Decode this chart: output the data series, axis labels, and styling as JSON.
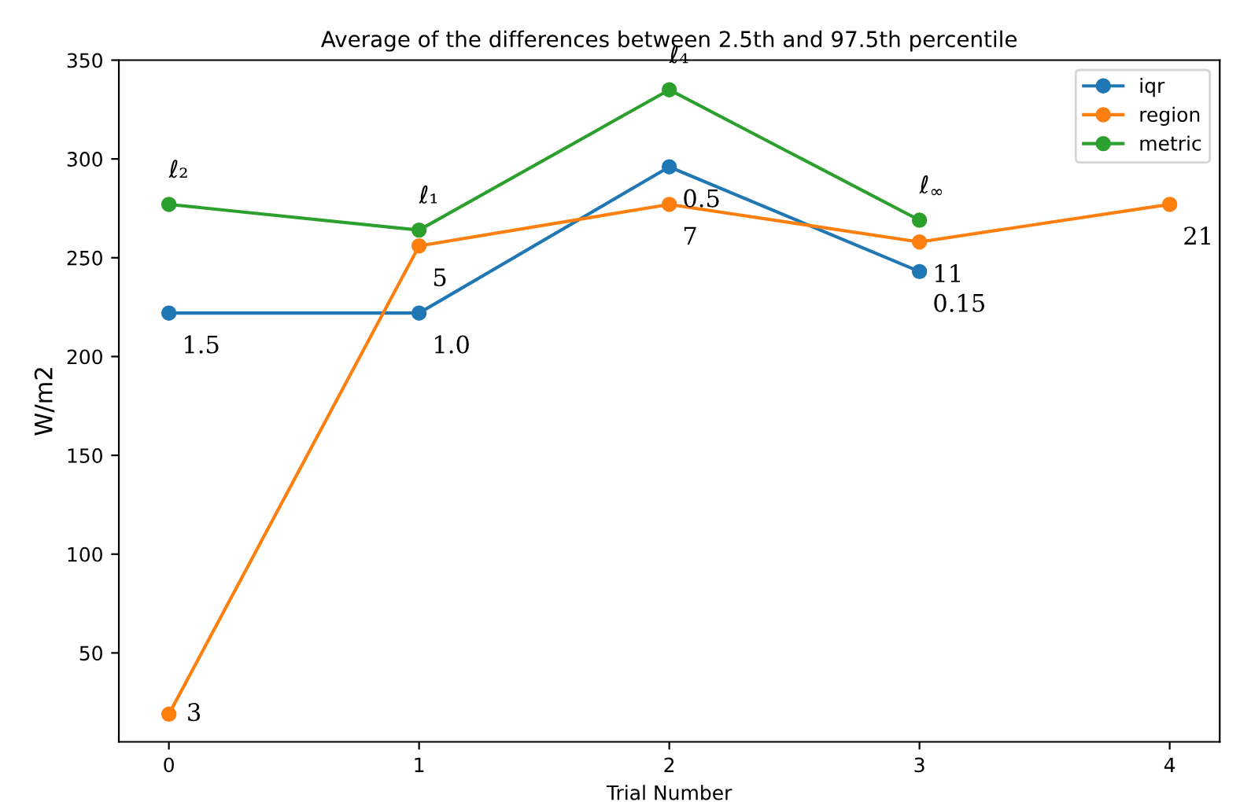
{
  "chart_data": {
    "type": "line",
    "title": "Average of the differences between 2.5th and 97.5th percentile",
    "xlabel": "Trial Number",
    "ylabel": "W/m2",
    "xlim": [
      -0.2,
      4.2
    ],
    "xticks": [
      0,
      1,
      2,
      3,
      4
    ],
    "ylim": [
      5,
      350
    ],
    "yticks": [
      50,
      100,
      150,
      200,
      250,
      300,
      350
    ],
    "marker": "circle",
    "legend": "top right",
    "grid": false,
    "series": [
      {
        "name": "iqr",
        "color": "#1f77b4",
        "x": [
          0,
          1,
          2,
          3
        ],
        "values": [
          222,
          222,
          296,
          243
        ]
      },
      {
        "name": "region",
        "color": "#ff7f0e",
        "x": [
          0,
          1,
          2,
          3,
          4
        ],
        "values": [
          19,
          256,
          277,
          258,
          277
        ]
      },
      {
        "name": "metric",
        "color": "#2ca02c",
        "x": [
          0,
          1,
          2,
          3
        ],
        "values": [
          277,
          264,
          335,
          269
        ]
      }
    ],
    "annotations": [
      {
        "text": "1.5",
        "x": 0,
        "y": 222
      },
      {
        "text": "1.0",
        "x": 1,
        "y": 222
      },
      {
        "text": "0.5",
        "x": 2,
        "y": 296
      },
      {
        "text": "0.15",
        "x": 3,
        "y": 243
      },
      {
        "text": "3",
        "x": 0,
        "y": 19
      },
      {
        "text": "5",
        "x": 1,
        "y": 256
      },
      {
        "text": "7",
        "x": 2,
        "y": 277
      },
      {
        "text": "11",
        "x": 3,
        "y": 258
      },
      {
        "text": "21",
        "x": 4,
        "y": 277
      },
      {
        "text": "ℓ₂",
        "x": 0,
        "y": 277
      },
      {
        "text": "ℓ₁",
        "x": 1,
        "y": 264
      },
      {
        "text": "ℓ₄",
        "x": 2,
        "y": 335
      },
      {
        "text": "ℓ$_{∞}$",
        "x": 3,
        "y": 269
      }
    ]
  }
}
